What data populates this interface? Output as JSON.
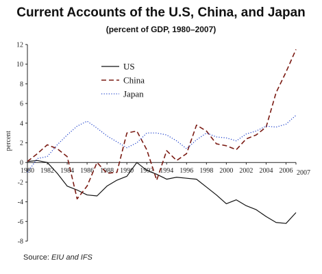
{
  "chart_data": {
    "type": "line",
    "title": "Current Accounts of the U.S, China, and Japan",
    "subtitle": "(percent of GDP, 1980–2007)",
    "ylabel": "percent",
    "xlabel": "",
    "xlim": [
      1980,
      2007
    ],
    "ylim": [
      -8,
      12
    ],
    "y_ticks": [
      -8,
      -6,
      -4,
      -2,
      0,
      2,
      4,
      6,
      8,
      10,
      12
    ],
    "x_ticks": [
      1980,
      1982,
      1984,
      1986,
      1988,
      1990,
      1992,
      1994,
      1996,
      1998,
      2000,
      2002,
      2004,
      2006,
      2007
    ],
    "x_tick_labels": [
      "1980",
      "1982",
      "1984",
      "1986",
      "1988",
      "1990",
      "1992",
      "1994",
      "1996",
      "1998",
      "2000",
      "2002",
      "2004",
      "2006",
      "2007"
    ],
    "grid": false,
    "legend_position": "top-center",
    "x": [
      1980,
      1981,
      1982,
      1983,
      1984,
      1985,
      1986,
      1987,
      1988,
      1989,
      1990,
      1991,
      1992,
      1993,
      1994,
      1995,
      1996,
      1997,
      1998,
      1999,
      2000,
      2001,
      2002,
      2003,
      2004,
      2005,
      2006,
      2007
    ],
    "series": [
      {
        "name": "US",
        "style": "solid",
        "color": "#111111",
        "values": [
          0.1,
          0.2,
          0.0,
          -1.1,
          -2.4,
          -2.8,
          -3.3,
          -3.4,
          -2.4,
          -1.8,
          -1.4,
          0.0,
          -0.8,
          -1.2,
          -1.7,
          -1.5,
          -1.6,
          -1.7,
          -2.5,
          -3.3,
          -4.2,
          -3.8,
          -4.4,
          -4.8,
          -5.5,
          -6.1,
          -6.2,
          -5.1
        ]
      },
      {
        "name": "China",
        "style": "dashed",
        "color": "#7a1a12",
        "values": [
          0.1,
          0.9,
          1.8,
          1.4,
          0.6,
          -3.7,
          -2.4,
          0.0,
          -1.1,
          -1.0,
          3.0,
          3.2,
          1.3,
          -1.8,
          1.2,
          0.2,
          0.9,
          3.8,
          3.2,
          1.9,
          1.7,
          1.3,
          2.4,
          2.8,
          3.6,
          7.1,
          9.2,
          11.5
        ]
      },
      {
        "name": "Japan",
        "style": "dotted",
        "color": "#2244cc",
        "values": [
          -1.0,
          0.4,
          0.6,
          1.8,
          2.8,
          3.7,
          4.2,
          3.5,
          2.7,
          2.1,
          1.5,
          2.0,
          3.0,
          3.0,
          2.8,
          2.2,
          1.4,
          2.3,
          3.0,
          2.6,
          2.5,
          2.2,
          2.9,
          3.2,
          3.7,
          3.6,
          3.9,
          4.8
        ]
      }
    ]
  },
  "source": {
    "prefix": "Source: ",
    "text": "EIU and IFS"
  }
}
